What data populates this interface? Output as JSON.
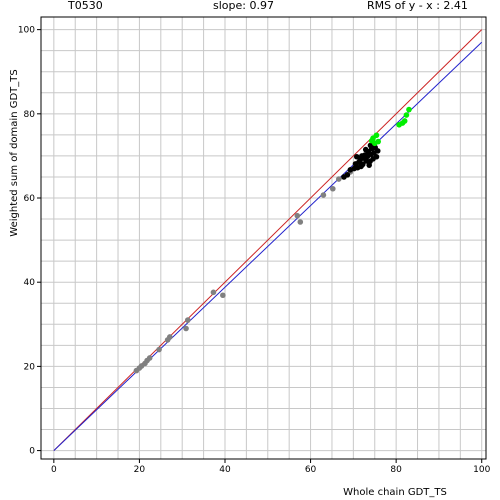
{
  "header": {
    "target": "T0530",
    "slope": "slope: 0.97",
    "rms": "RMS of  y - x : 2.41"
  },
  "chart_data": {
    "type": "scatter",
    "xlabel": "Whole chain GDT_TS",
    "ylabel": "Weighted sum of domain GDT_TS",
    "xlim": [
      -3,
      101
    ],
    "ylim": [
      -2,
      103
    ],
    "x_ticks": [
      0,
      20,
      40,
      60,
      80,
      100
    ],
    "y_ticks": [
      0,
      20,
      40,
      60,
      80,
      100
    ],
    "grid": true,
    "grid_step": 5,
    "lines": [
      {
        "color": "#cc2222",
        "slope": 1.0,
        "intercept": 0,
        "x_range": [
          0,
          100
        ]
      },
      {
        "color": "#2222cc",
        "slope": 0.97,
        "intercept": 0,
        "x_range": [
          0,
          100
        ]
      }
    ],
    "series": [
      {
        "color": "#808080",
        "points": [
          [
            19.3,
            19.0
          ],
          [
            20.0,
            19.6
          ],
          [
            20.5,
            20.1
          ],
          [
            21.3,
            20.7
          ],
          [
            21.8,
            21.4
          ],
          [
            22.4,
            22.0
          ],
          [
            24.6,
            24.0
          ],
          [
            26.6,
            26.3
          ],
          [
            27.1,
            27.0
          ],
          [
            30.9,
            29.0
          ],
          [
            31.3,
            31.0
          ],
          [
            37.3,
            37.6
          ],
          [
            39.5,
            36.9
          ],
          [
            56.9,
            55.8
          ],
          [
            57.6,
            54.3
          ],
          [
            63.0,
            60.7
          ],
          [
            65.2,
            62.2
          ],
          [
            66.6,
            64.5
          ],
          [
            69.3,
            66.2
          ]
        ]
      },
      {
        "color": "#000000",
        "points": [
          [
            67.8,
            65.0
          ],
          [
            68.6,
            65.5
          ],
          [
            69.3,
            66.7
          ],
          [
            70.2,
            67.0
          ],
          [
            70.5,
            68.1
          ],
          [
            71.0,
            67.2
          ],
          [
            71.3,
            68.5
          ],
          [
            71.6,
            69.1
          ],
          [
            72.0,
            70.0
          ],
          [
            72.2,
            68.0
          ],
          [
            72.4,
            69.5
          ],
          [
            72.7,
            70.2
          ],
          [
            73.0,
            68.8
          ],
          [
            73.3,
            69.9
          ],
          [
            73.5,
            71.0
          ],
          [
            73.7,
            67.8
          ],
          [
            73.9,
            68.7
          ],
          [
            74.1,
            70.4
          ],
          [
            74.3,
            71.8
          ],
          [
            74.6,
            69.3
          ],
          [
            74.8,
            70.7
          ],
          [
            75.1,
            72.0
          ],
          [
            75.4,
            69.8
          ],
          [
            75.7,
            71.2
          ],
          [
            74.0,
            72.5
          ],
          [
            71.8,
            67.5
          ],
          [
            70.8,
            69.8
          ],
          [
            72.9,
            71.5
          ]
        ]
      },
      {
        "color": "#00ee00",
        "points": [
          [
            74.3,
            73.6
          ],
          [
            74.6,
            74.2
          ],
          [
            75.0,
            73.0
          ],
          [
            75.4,
            74.9
          ],
          [
            75.8,
            73.4
          ],
          [
            80.7,
            77.4
          ],
          [
            81.5,
            77.8
          ],
          [
            82.0,
            78.3
          ],
          [
            82.4,
            79.7
          ],
          [
            83.0,
            81.0
          ]
        ]
      }
    ]
  }
}
